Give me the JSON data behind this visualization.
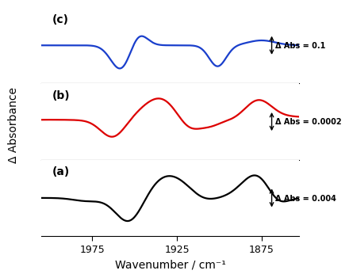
{
  "title": "",
  "xlabel": "Wavenumber / cm⁻¹",
  "ylabel": "Δ Absorbance",
  "xmin": 2005,
  "xmax": 1853,
  "background_color": "#ffffff",
  "panel_labels": [
    "(c)",
    "(b)",
    "(a)"
  ],
  "colors": [
    "#1a3fcc",
    "#dd0000",
    "#000000"
  ],
  "scale_labels": [
    "Δ Abs = 0.1",
    "Δ Abs = 0.0002",
    "Δ Abs = 0.004"
  ],
  "linewidth": 1.6,
  "xticks": [
    1975,
    1925,
    1875
  ]
}
